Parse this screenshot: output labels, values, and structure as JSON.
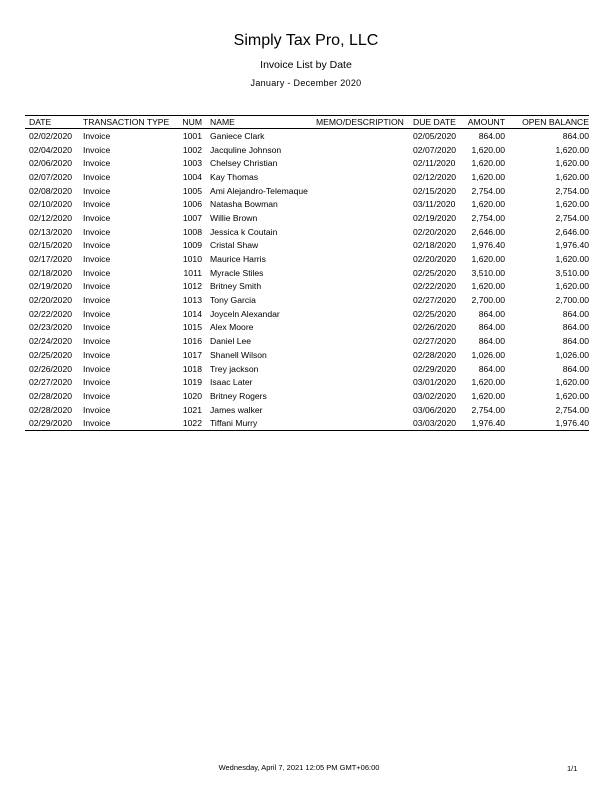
{
  "header": {
    "company": "Simply Tax Pro, LLC",
    "title": "Invoice List by Date",
    "period": "January - December 2020"
  },
  "table": {
    "columns": [
      "DATE",
      "TRANSACTION TYPE",
      "NUM",
      "NAME",
      "MEMO/DESCRIPTION",
      "DUE DATE",
      "AMOUNT",
      "OPEN BALANCE"
    ],
    "rows": [
      [
        "02/02/2020",
        "Invoice",
        "1001",
        "Ganiece Clark",
        "",
        "02/05/2020",
        "864.00",
        "864.00"
      ],
      [
        "02/04/2020",
        "Invoice",
        "1002",
        "Jacquline Johnson",
        "",
        "02/07/2020",
        "1,620.00",
        "1,620.00"
      ],
      [
        "02/06/2020",
        "Invoice",
        "1003",
        "Chelsey Christian",
        "",
        "02/11/2020",
        "1,620.00",
        "1,620.00"
      ],
      [
        "02/07/2020",
        "Invoice",
        "1004",
        "Kay Thomas",
        "",
        "02/12/2020",
        "1,620.00",
        "1,620.00"
      ],
      [
        "02/08/2020",
        "Invoice",
        "1005",
        "Ami Alejandro-Telemaque",
        "",
        "02/15/2020",
        "2,754.00",
        "2,754.00"
      ],
      [
        "02/10/2020",
        "Invoice",
        "1006",
        "Natasha Bowman",
        "",
        "03/11/2020",
        "1,620.00",
        "1,620.00"
      ],
      [
        "02/12/2020",
        "Invoice",
        "1007",
        "Willie Brown",
        "",
        "02/19/2020",
        "2,754.00",
        "2,754.00"
      ],
      [
        "02/13/2020",
        "Invoice",
        "1008",
        "Jessica k Coutain",
        "",
        "02/20/2020",
        "2,646.00",
        "2,646.00"
      ],
      [
        "02/15/2020",
        "Invoice",
        "1009",
        "Cristal Shaw",
        "",
        "02/18/2020",
        "1,976.40",
        "1,976.40"
      ],
      [
        "02/17/2020",
        "Invoice",
        "1010",
        "Maurice Harris",
        "",
        "02/20/2020",
        "1,620.00",
        "1,620.00"
      ],
      [
        "02/18/2020",
        "Invoice",
        "1011",
        "Myracle Stiles",
        "",
        "02/25/2020",
        "3,510.00",
        "3,510.00"
      ],
      [
        "02/19/2020",
        "Invoice",
        "1012",
        "Britney Smith",
        "",
        "02/22/2020",
        "1,620.00",
        "1,620.00"
      ],
      [
        "02/20/2020",
        "Invoice",
        "1013",
        "Tony Garcia",
        "",
        "02/27/2020",
        "2,700.00",
        "2,700.00"
      ],
      [
        "02/22/2020",
        "Invoice",
        "1014",
        "Joyceln Alexandar",
        "",
        "02/25/2020",
        "864.00",
        "864.00"
      ],
      [
        "02/23/2020",
        "Invoice",
        "1015",
        "Alex Moore",
        "",
        "02/26/2020",
        "864.00",
        "864.00"
      ],
      [
        "02/24/2020",
        "Invoice",
        "1016",
        "Daniel Lee",
        "",
        "02/27/2020",
        "864.00",
        "864.00"
      ],
      [
        "02/25/2020",
        "Invoice",
        "1017",
        "Shanell  Wilson",
        "",
        "02/28/2020",
        "1,026.00",
        "1,026.00"
      ],
      [
        "02/26/2020",
        "Invoice",
        "1018",
        "Trey jackson",
        "",
        "02/29/2020",
        "864.00",
        "864.00"
      ],
      [
        "02/27/2020",
        "Invoice",
        "1019",
        "Isaac Later",
        "",
        "03/01/2020",
        "1,620.00",
        "1,620.00"
      ],
      [
        "02/28/2020",
        "Invoice",
        "1020",
        "Britney Rogers",
        "",
        "03/02/2020",
        "1,620.00",
        "1,620.00"
      ],
      [
        "02/28/2020",
        "Invoice",
        "1021",
        "James walker",
        "",
        "03/06/2020",
        "2,754.00",
        "2,754.00"
      ],
      [
        "02/29/2020",
        "Invoice",
        "1022",
        "Tiffani Murry",
        "",
        "03/03/2020",
        "1,976.40",
        "1,976.40"
      ]
    ]
  },
  "footer": {
    "timestamp": "Wednesday, April 7, 2021 12:05 PM GMT+06:00",
    "page": "1/1"
  }
}
